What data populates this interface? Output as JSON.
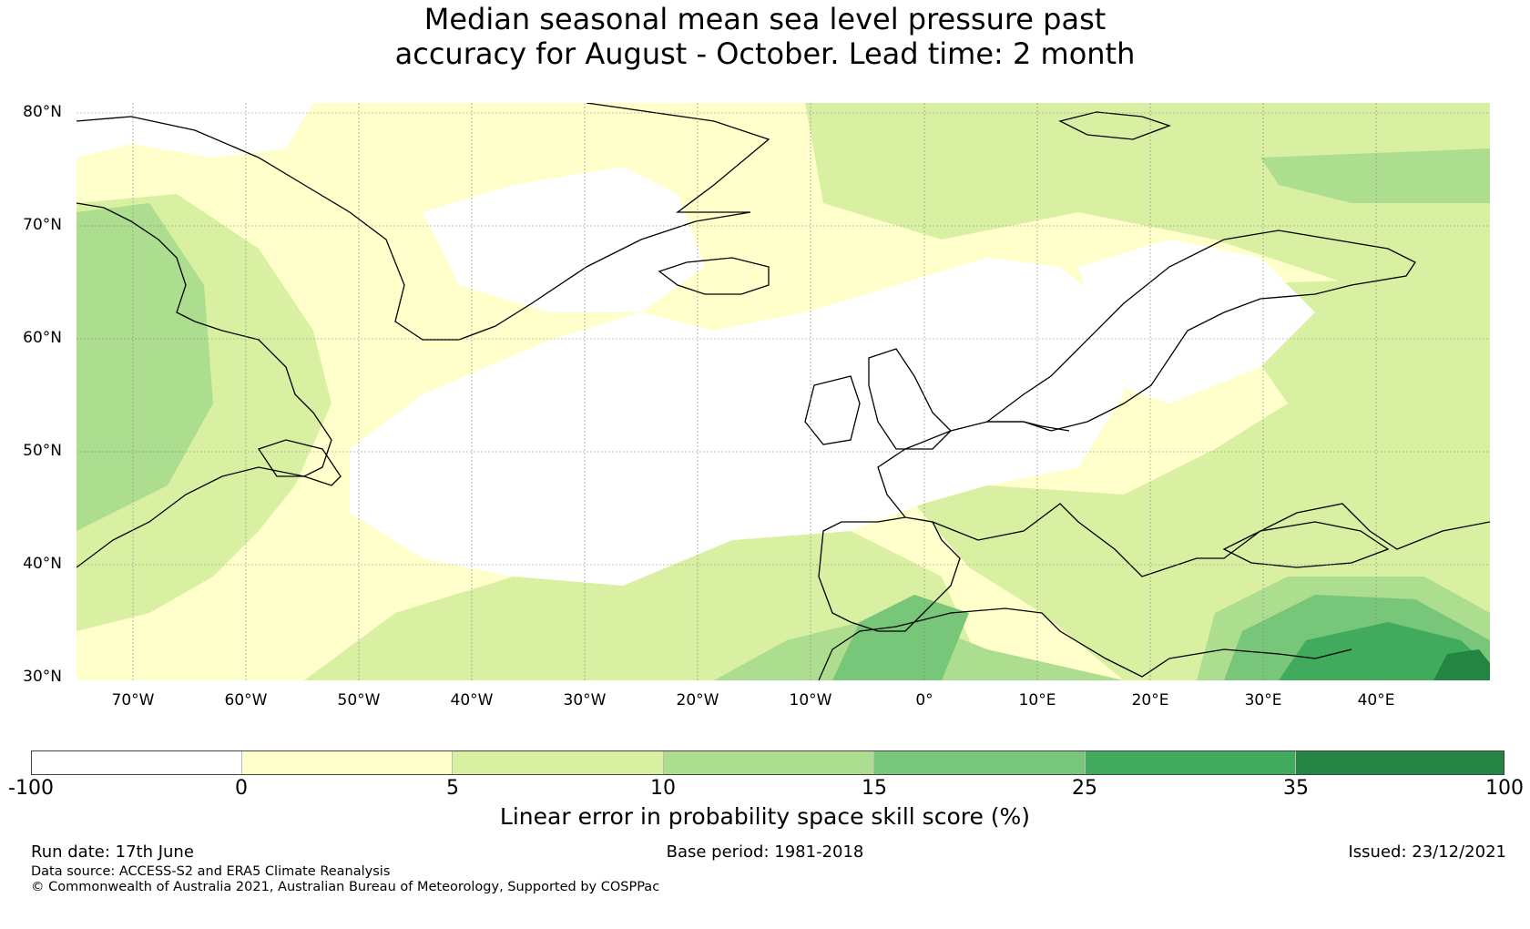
{
  "title_line1": "Median seasonal mean sea level pressure past",
  "title_line2": "accuracy for August - October. Lead time: 2 month",
  "map": {
    "lat_labels": [
      "80°N",
      "70°N",
      "60°N",
      "50°N",
      "40°N",
      "30°N"
    ],
    "lon_labels": [
      "70°W",
      "60°W",
      "50°W",
      "40°W",
      "30°W",
      "20°W",
      "10°W",
      "0°",
      "10°E",
      "20°E",
      "30°E",
      "40°E"
    ],
    "lon_range": [
      -75,
      50
    ],
    "lat_range": [
      30,
      81
    ],
    "grid_lines": true
  },
  "colorbar": {
    "title": "Linear error in probability space skill score (%)",
    "tick_labels": [
      "-100",
      "0",
      "5",
      "10",
      "15",
      "25",
      "35",
      "100"
    ],
    "colors": [
      "#ffffff",
      "#ffffcc",
      "#d9f0a3",
      "#addd8e",
      "#78c679",
      "#41ab5d",
      "#238443"
    ]
  },
  "footer": {
    "run_date": "Run date: 17th June",
    "base_period": "Base period: 1981-2018",
    "issued": "Issued: 23/12/2021",
    "data_source": "Data source: ACCESS-S2 and ERA5 Climate Reanalysis",
    "copyright": "© Commonwealth of Australia 2021, Australian Bureau of Meteorology, Supported by COSPPac"
  }
}
